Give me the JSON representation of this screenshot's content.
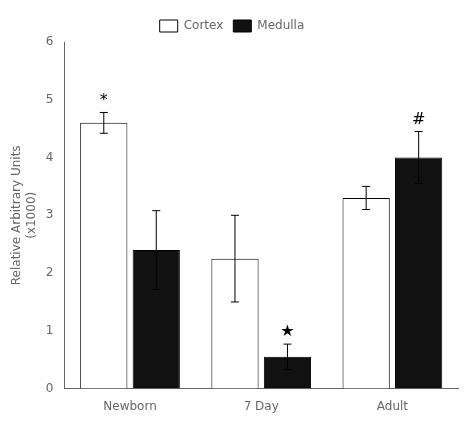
{
  "chart_data": {
    "type": "bar",
    "categories": [
      "Newborn",
      "7 Day",
      "Adult"
    ],
    "series": [
      {
        "name": "Cortex",
        "color": "#ffffff",
        "values": [
          4.6,
          2.25,
          3.3
        ],
        "errors": [
          0.18,
          0.75,
          0.2
        ]
      },
      {
        "name": "Medulla",
        "color": "#111111",
        "values": [
          2.4,
          0.55,
          4.0
        ],
        "errors": [
          0.68,
          0.22,
          0.45
        ]
      }
    ],
    "y_label": "Relative Arbitrary Units\n(x1000)",
    "ylim": [
      0,
      6
    ],
    "yticks": [
      0,
      1,
      2,
      3,
      4,
      5,
      6
    ],
    "grid": false,
    "legend": "top",
    "annotations": [
      {
        "text": "*",
        "series": "Cortex",
        "category": "Newborn"
      },
      {
        "text": "★",
        "series": "Medulla",
        "category": "7 Day"
      },
      {
        "text": "#",
        "series": "Medulla",
        "category": "Adult"
      }
    ]
  }
}
